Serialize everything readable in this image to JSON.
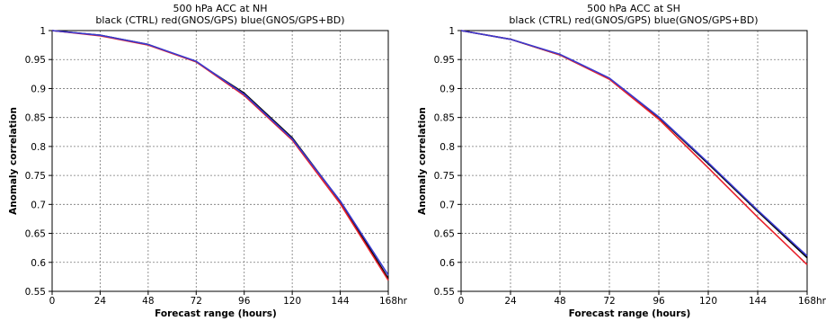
{
  "chart_data": [
    {
      "type": "line",
      "title": "500 hPa ACC at NH",
      "subtitle": "black (CTRL) red(GNOS/GPS) blue(GNOS/GPS+BD)",
      "xlabel": "Forecast range (hours)",
      "ylabel": "Anomaly correlation",
      "x_unit": "hr",
      "x": [
        0,
        24,
        48,
        72,
        96,
        120,
        144,
        168
      ],
      "xlim": [
        0,
        168
      ],
      "ylim": [
        0.55,
        1
      ],
      "x_ticks": [
        0,
        24,
        48,
        72,
        96,
        120,
        144,
        168
      ],
      "y_ticks": [
        0.55,
        0.6,
        0.65,
        0.7,
        0.75,
        0.8,
        0.85,
        0.9,
        0.95,
        1
      ],
      "y_tick_labels": [
        "0.55",
        "0.6",
        "0.65",
        "0.7",
        "0.75",
        "0.8",
        "0.85",
        "0.9",
        "0.95",
        "1"
      ],
      "grid": true,
      "series": [
        {
          "color": "#000000",
          "values": [
            1.0,
            0.992,
            0.976,
            0.946,
            0.892,
            0.815,
            0.705,
            0.572
          ]
        },
        {
          "color": "#e8202a",
          "values": [
            1.0,
            0.991,
            0.975,
            0.946,
            0.888,
            0.811,
            0.701,
            0.569
          ]
        },
        {
          "color": "#3a3ad0",
          "values": [
            1.0,
            0.992,
            0.976,
            0.947,
            0.89,
            0.813,
            0.706,
            0.578
          ]
        }
      ]
    },
    {
      "type": "line",
      "title": "500 hPa ACC at SH",
      "subtitle": "black (CTRL) red(GNOS/GPS) blue(GNOS/GPS+BD)",
      "xlabel": "Forecast range (hours)",
      "ylabel": "Anomaly correlation",
      "x_unit": "hr",
      "x": [
        0,
        24,
        48,
        72,
        96,
        120,
        144,
        168
      ],
      "xlim": [
        0,
        168
      ],
      "ylim": [
        0.55,
        1
      ],
      "x_ticks": [
        0,
        24,
        48,
        72,
        96,
        120,
        144,
        168
      ],
      "y_ticks": [
        0.55,
        0.6,
        0.65,
        0.7,
        0.75,
        0.8,
        0.85,
        0.9,
        0.95,
        1
      ],
      "y_tick_labels": [
        "0.55",
        "0.6",
        "0.65",
        "0.7",
        "0.75",
        "0.8",
        "0.85",
        "0.9",
        "0.95",
        "1"
      ],
      "grid": true,
      "series": [
        {
          "color": "#000000",
          "values": [
            1.0,
            0.985,
            0.958,
            0.917,
            0.85,
            0.77,
            0.688,
            0.608
          ]
        },
        {
          "color": "#e8202a",
          "values": [
            1.0,
            0.985,
            0.958,
            0.916,
            0.847,
            0.763,
            0.678,
            0.596
          ]
        },
        {
          "color": "#3a3ad0",
          "values": [
            1.0,
            0.985,
            0.959,
            0.918,
            0.851,
            0.772,
            0.69,
            0.611
          ]
        }
      ]
    }
  ]
}
